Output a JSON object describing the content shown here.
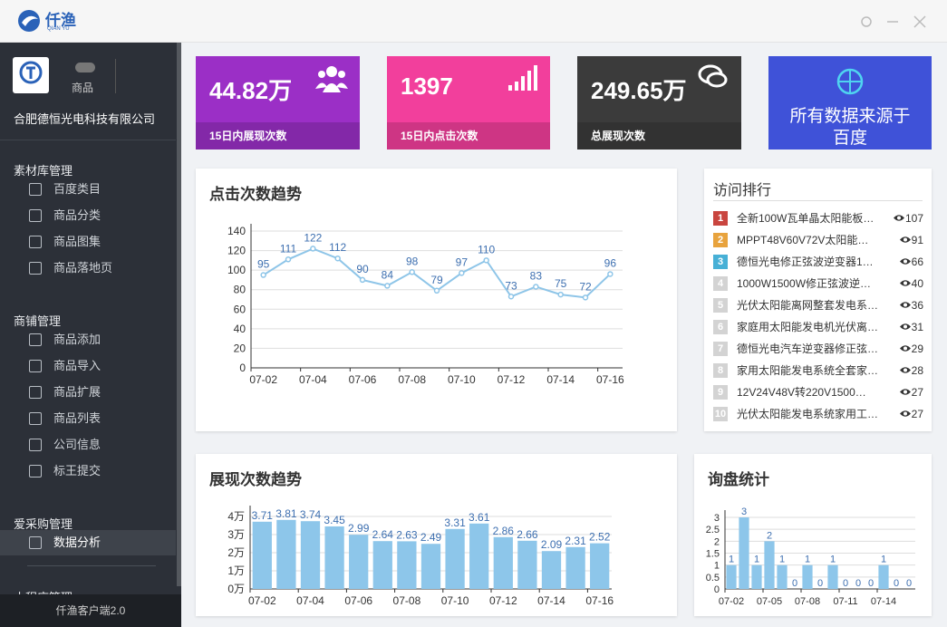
{
  "header": {
    "logo": "仟渔",
    "logo_sub": "QIAN YU"
  },
  "sidebar": {
    "shop_label": "商品",
    "company": "合肥德恒光电科技有限公司",
    "sections": [
      {
        "title": "素材库管理",
        "items": [
          "百度类目",
          "商品分类",
          "商品图集",
          "商品落地页"
        ]
      },
      {
        "title": "商铺管理",
        "items": [
          "商品添加",
          "商品导入",
          "商品扩展",
          "商品列表",
          "公司信息",
          "标王提交"
        ]
      },
      {
        "title": "爱采购管理",
        "items": [
          "数据分析"
        ]
      },
      {
        "title": "小程序管理",
        "items": []
      }
    ],
    "footer": "仟渔客户端2.0"
  },
  "stats": [
    {
      "value": "44.82万",
      "label": "15日内展现次数"
    },
    {
      "value": "1397",
      "label": "15日内点击次数"
    },
    {
      "value": "249.65万",
      "label": "总展现次数"
    }
  ],
  "banner": {
    "line1": "所有数据来源于",
    "line2": "百度"
  },
  "ranking": {
    "title": "访问排行",
    "items": [
      {
        "rank": 1,
        "name": "全新100W瓦单晶太阳能板…",
        "views": 107
      },
      {
        "rank": 2,
        "name": "MPPT48V60V72V太阳能…",
        "views": 91
      },
      {
        "rank": 3,
        "name": "德恒光电修正弦波逆变器1…",
        "views": 66
      },
      {
        "rank": 4,
        "name": "1000W1500W修正弦波逆…",
        "views": 40
      },
      {
        "rank": 5,
        "name": "光伏太阳能离网整套发电系…",
        "views": 36
      },
      {
        "rank": 6,
        "name": "家庭用太阳能发电机光伏离…",
        "views": 31
      },
      {
        "rank": 7,
        "name": "德恒光电汽车逆变器修正弦…",
        "views": 29
      },
      {
        "rank": 8,
        "name": "家用太阳能发电系统全套家…",
        "views": 28
      },
      {
        "rank": 9,
        "name": "12V24V48V转220V1500…",
        "views": 27
      },
      {
        "rank": 10,
        "name": "光伏太阳能发电系统家用工…",
        "views": 27
      }
    ]
  },
  "chart_data": [
    {
      "type": "line",
      "title": "点击次数趋势",
      "color": "#8ec5e8",
      "categories": [
        "07-02",
        null,
        "07-04",
        null,
        "07-06",
        null,
        "07-08",
        null,
        "07-10",
        null,
        "07-12",
        null,
        "07-14",
        null,
        "07-16"
      ],
      "values": [
        95,
        111,
        122,
        112,
        90,
        84,
        98,
        79,
        97,
        110,
        73,
        83,
        75,
        72,
        96
      ],
      "ylim": [
        0,
        140
      ],
      "yticks": [
        0,
        20,
        40,
        60,
        80,
        100,
        120,
        140
      ],
      "grid": true
    },
    {
      "type": "bar",
      "title": "展现次数趋势",
      "color": "#8dc6ea",
      "categories": [
        "07-02",
        null,
        "07-04",
        null,
        "07-06",
        null,
        "07-08",
        null,
        "07-10",
        null,
        "07-12",
        null,
        "07-14",
        null,
        "07-16"
      ],
      "values": [
        3.71,
        3.81,
        3.74,
        3.45,
        2.99,
        2.64,
        2.63,
        2.49,
        3.31,
        3.61,
        2.86,
        2.66,
        2.09,
        2.31,
        2.52
      ],
      "ylim": [
        0,
        4.2
      ],
      "yticks": [
        {
          "value": 0,
          "label": "0万"
        },
        {
          "value": 1,
          "label": "1万"
        },
        {
          "value": 2,
          "label": "2万"
        },
        {
          "value": 3,
          "label": "3万"
        },
        {
          "value": 4,
          "label": "4万"
        }
      ],
      "grid": true
    },
    {
      "type": "bar",
      "title": "询盘统计",
      "color": "#8dc6ea",
      "categories": [
        "07-02",
        null,
        null,
        "07-05",
        null,
        null,
        "07-08",
        null,
        null,
        "07-11",
        null,
        null,
        "07-14",
        null,
        null
      ],
      "values": [
        1,
        3,
        1,
        2,
        1,
        0,
        1,
        0,
        1,
        0,
        0,
        0,
        1,
        0,
        0
      ],
      "ylim": [
        0,
        3
      ],
      "yticks": [
        0,
        0.5,
        1,
        1.5,
        2,
        2.5,
        3
      ],
      "grid": true
    }
  ]
}
